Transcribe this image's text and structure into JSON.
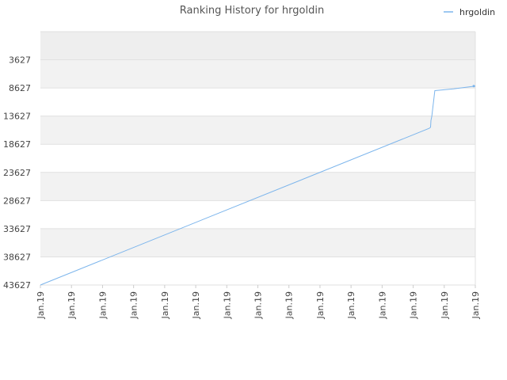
{
  "chart_data": {
    "type": "line",
    "title": "Ranking History for hrgoldin",
    "legend_position": "top-right",
    "grid": true,
    "y_axis": {
      "inverted": true,
      "ylim": [
        -1373,
        43627
      ],
      "tick_labels": [
        "3627",
        "8627",
        "13627",
        "18627",
        "23627",
        "28627",
        "33627",
        "38627",
        "43627"
      ],
      "tick_values": [
        3627,
        8627,
        13627,
        18627,
        23627,
        28627,
        33627,
        38627,
        43627
      ]
    },
    "x_axis": {
      "tick_labels": [
        "Jan.19",
        "Jan.19",
        "Jan.19",
        "Jan.19",
        "Jan.19",
        "Jan.19",
        "Jan.19",
        "Jan.19",
        "Jan.19",
        "Jan.19",
        "Jan.19",
        "Jan.19",
        "Jan.19",
        "Jan.19",
        "Jan.19"
      ]
    },
    "series": [
      {
        "name": "hrgoldin",
        "color": "#7cb5ec",
        "points": [
          {
            "x": 0.0,
            "y": 43627
          },
          {
            "x": 0.894,
            "y": 15800
          },
          {
            "x": 0.897,
            "y": 15600
          },
          {
            "x": 0.898,
            "y": 14400
          },
          {
            "x": 0.9,
            "y": 13650
          },
          {
            "x": 0.907,
            "y": 9100
          },
          {
            "x": 0.95,
            "y": 8800
          },
          {
            "x": 1.0,
            "y": 8300
          }
        ]
      }
    ]
  }
}
